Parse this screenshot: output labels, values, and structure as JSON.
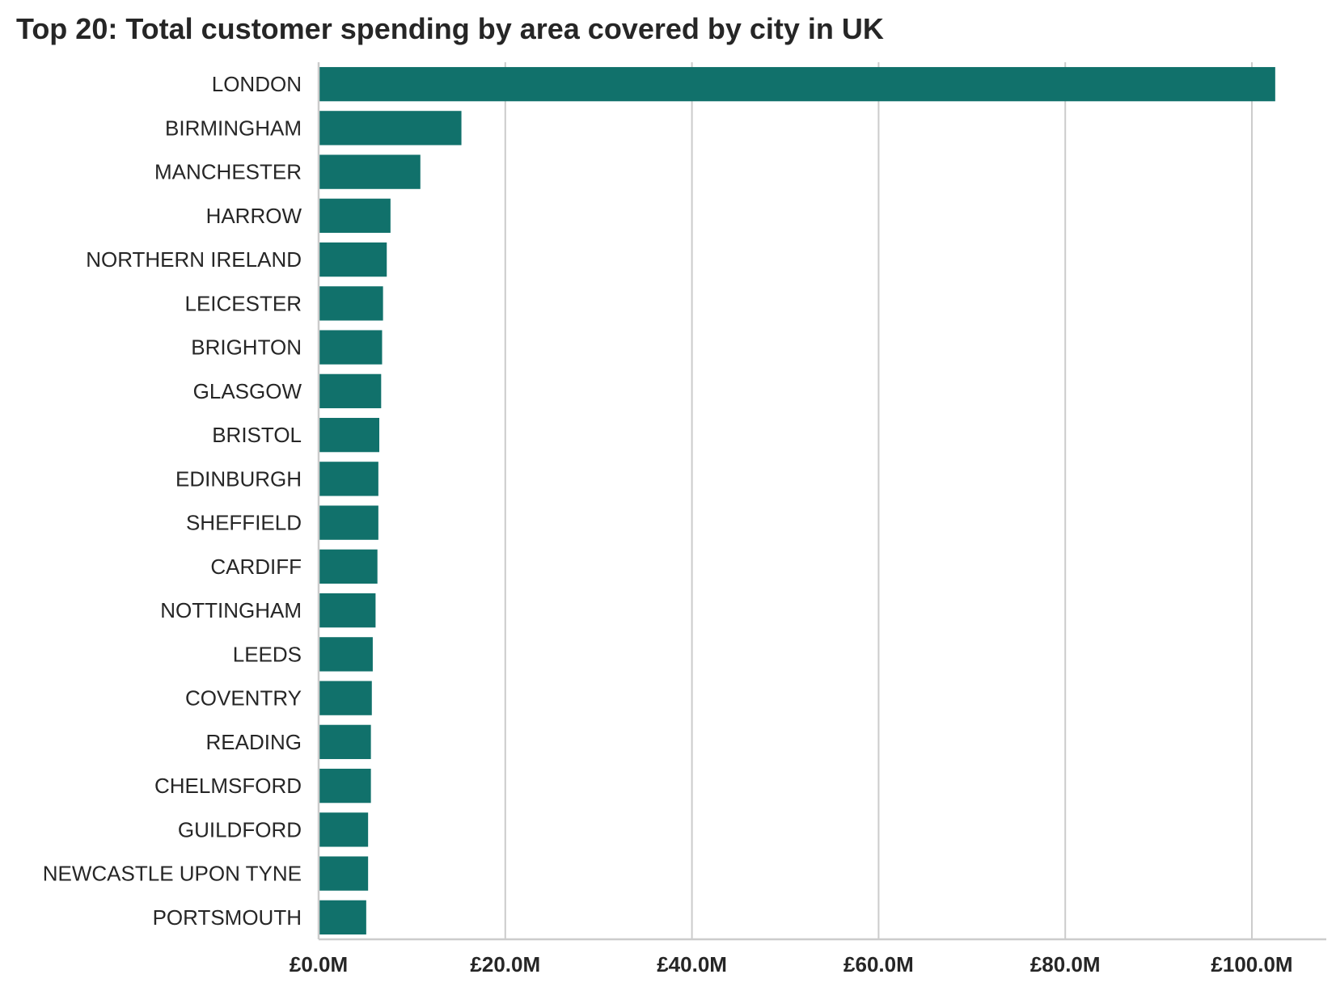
{
  "chart_data": {
    "type": "bar",
    "orientation": "horizontal",
    "title": "Top 20: Total customer spending by area covered by city in UK",
    "xlabel": "",
    "ylabel": "",
    "xlim": [
      0,
      108
    ],
    "value_unit": "£M",
    "grid": "vertical",
    "bar_color": "#11716b",
    "tick_values": [
      0,
      20,
      40,
      60,
      80,
      100
    ],
    "tick_labels": [
      "£0.0M",
      "£20.0M",
      "£40.0M",
      "£60.0M",
      "£80.0M",
      "£100.0M"
    ],
    "categories": [
      "LONDON",
      "BIRMINGHAM",
      "MANCHESTER",
      "HARROW",
      "NORTHERN IRELAND",
      "LEICESTER",
      "BRIGHTON",
      "GLASGOW",
      "BRISTOL",
      "EDINBURGH",
      "SHEFFIELD",
      "CARDIFF",
      "NOTTINGHAM",
      "LEEDS",
      "COVENTRY",
      "READING",
      "CHELMSFORD",
      "GUILDFORD",
      "NEWCASTLE UPON TYNE",
      "PORTSMOUTH"
    ],
    "values": [
      102.5,
      15.3,
      10.9,
      7.7,
      7.3,
      6.9,
      6.8,
      6.7,
      6.5,
      6.4,
      6.4,
      6.3,
      6.1,
      5.8,
      5.7,
      5.6,
      5.6,
      5.3,
      5.3,
      5.1
    ]
  }
}
